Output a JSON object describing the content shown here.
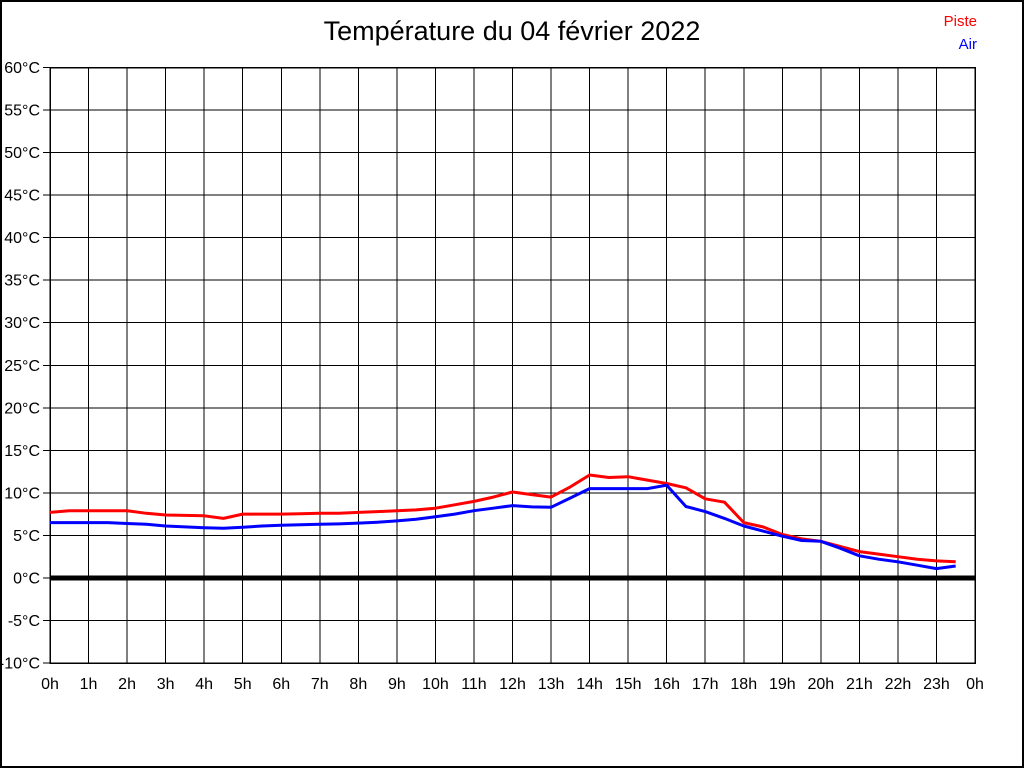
{
  "title": "Température du 04 février 2022",
  "legend": {
    "position": "top-right",
    "items": [
      {
        "label": "Piste",
        "color": "#ff0000"
      },
      {
        "label": "Air",
        "color": "#0000ff"
      }
    ]
  },
  "colors": {
    "background": "#ffffff",
    "grid": "#000000",
    "frame": "#000000",
    "zero_line": "#000000",
    "piste": "#ff0000",
    "air": "#0000ff"
  },
  "chart_data": {
    "type": "line",
    "title": "Température du 04 février 2022",
    "xlabel": "",
    "ylabel": "",
    "xlim": [
      0,
      24
    ],
    "ylim": [
      -10,
      60
    ],
    "grid": true,
    "legend_position": "top-right",
    "zero_line": {
      "value": 0,
      "width": 5,
      "color": "#000000"
    },
    "x_unit": "hours",
    "x_tick_values": [
      0,
      1,
      2,
      3,
      4,
      5,
      6,
      7,
      8,
      9,
      10,
      11,
      12,
      13,
      14,
      15,
      16,
      17,
      18,
      19,
      20,
      21,
      22,
      23,
      24
    ],
    "x_tick_labels": [
      "0h",
      "1h",
      "2h",
      "3h",
      "4h",
      "5h",
      "6h",
      "7h",
      "8h",
      "9h",
      "10h",
      "11h",
      "12h",
      "13h",
      "14h",
      "15h",
      "16h",
      "17h",
      "18h",
      "19h",
      "20h",
      "21h",
      "22h",
      "23h",
      "0h"
    ],
    "y_tick_values": [
      60,
      55,
      50,
      45,
      40,
      35,
      30,
      25,
      20,
      15,
      10,
      5,
      0,
      -5,
      -10
    ],
    "y_tick_labels": [
      "60°C",
      "55°C",
      "50°C",
      "45°C",
      "40°C",
      "35°C",
      "30°C",
      "25°C",
      "20°C",
      "15°C",
      "10°C",
      "5°C",
      "0°C",
      "-5°C",
      "-10°C"
    ],
    "x": [
      0,
      0.5,
      1,
      1.5,
      2,
      2.5,
      3,
      3.5,
      4,
      4.5,
      5,
      5.5,
      6,
      6.5,
      7,
      7.5,
      8,
      8.5,
      9,
      9.5,
      10,
      10.5,
      11,
      11.5,
      12,
      12.5,
      13,
      13.5,
      14,
      14.5,
      15,
      15.5,
      16,
      16.5,
      17,
      17.5,
      18,
      18.5,
      19,
      19.5,
      20,
      20.5,
      21,
      21.5,
      22,
      22.5,
      23,
      23.5
    ],
    "series": [
      {
        "name": "Piste",
        "color": "#ff0000",
        "values": [
          7.7,
          7.9,
          7.9,
          7.9,
          7.9,
          7.6,
          7.4,
          7.35,
          7.3,
          7.0,
          7.5,
          7.5,
          7.5,
          7.55,
          7.6,
          7.6,
          7.7,
          7.8,
          7.9,
          8.0,
          8.2,
          8.6,
          9.0,
          9.5,
          10.1,
          9.8,
          9.5,
          10.7,
          12.1,
          11.8,
          11.9,
          11.5,
          11.1,
          10.6,
          9.3,
          8.9,
          6.5,
          6.0,
          5.1,
          4.6,
          4.3,
          3.7,
          3.1,
          2.8,
          2.5,
          2.2,
          2.0,
          1.9
        ]
      },
      {
        "name": "Air",
        "color": "#0000ff",
        "values": [
          6.5,
          6.5,
          6.5,
          6.5,
          6.4,
          6.3,
          6.1,
          6.0,
          5.9,
          5.85,
          5.95,
          6.1,
          6.2,
          6.25,
          6.3,
          6.35,
          6.45,
          6.55,
          6.7,
          6.9,
          7.2,
          7.5,
          7.9,
          8.2,
          8.5,
          8.35,
          8.3,
          9.4,
          10.5,
          10.5,
          10.5,
          10.5,
          10.9,
          8.4,
          7.8,
          7.0,
          6.1,
          5.5,
          4.9,
          4.4,
          4.3,
          3.5,
          2.6,
          2.2,
          1.9,
          1.5,
          1.1,
          1.4
        ]
      }
    ]
  }
}
